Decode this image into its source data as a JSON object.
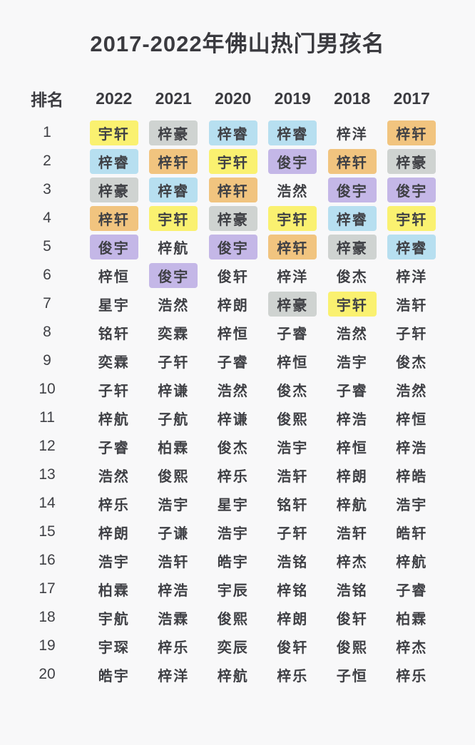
{
  "chart_data": {
    "type": "table",
    "title": "2017-2022年佛山热门男孩名",
    "rank_header": "排名",
    "year_columns": [
      "2022",
      "2021",
      "2020",
      "2019",
      "2018",
      "2017"
    ],
    "highlight_palette": {
      "yellow": "#faf170",
      "gray": "#cfd3d1",
      "blue": "#b7dff0",
      "orange": "#f1c47f",
      "purple": "#c4b7e7"
    },
    "rows": [
      {
        "rank": "1",
        "names": [
          "宇轩",
          "梓豪",
          "梓睿",
          "梓睿",
          "梓洋",
          "梓轩"
        ],
        "highlights": [
          "yellow",
          "gray",
          "blue",
          "blue",
          "",
          "orange"
        ]
      },
      {
        "rank": "2",
        "names": [
          "梓睿",
          "梓轩",
          "宇轩",
          "俊宇",
          "梓轩",
          "梓豪"
        ],
        "highlights": [
          "blue",
          "orange",
          "yellow",
          "purple",
          "orange",
          "gray"
        ]
      },
      {
        "rank": "3",
        "names": [
          "梓豪",
          "梓睿",
          "梓轩",
          "浩然",
          "俊宇",
          "俊宇"
        ],
        "highlights": [
          "gray",
          "blue",
          "orange",
          "",
          "purple",
          "purple"
        ]
      },
      {
        "rank": "4",
        "names": [
          "梓轩",
          "宇轩",
          "梓豪",
          "宇轩",
          "梓睿",
          "宇轩"
        ],
        "highlights": [
          "orange",
          "yellow",
          "gray",
          "yellow",
          "blue",
          "yellow"
        ]
      },
      {
        "rank": "5",
        "names": [
          "俊宇",
          "梓航",
          "俊宇",
          "梓轩",
          "梓豪",
          "梓睿"
        ],
        "highlights": [
          "purple",
          "",
          "purple",
          "orange",
          "gray",
          "blue"
        ]
      },
      {
        "rank": "6",
        "names": [
          "梓恒",
          "俊宇",
          "俊轩",
          "梓洋",
          "俊杰",
          "梓洋"
        ],
        "highlights": [
          "",
          "purple",
          "",
          "",
          "",
          ""
        ]
      },
      {
        "rank": "7",
        "names": [
          "星宇",
          "浩然",
          "梓朗",
          "梓豪",
          "宇轩",
          "浩轩"
        ],
        "highlights": [
          "",
          "",
          "",
          "gray",
          "yellow",
          ""
        ]
      },
      {
        "rank": "8",
        "names": [
          "铭轩",
          "奕霖",
          "梓恒",
          "子睿",
          "浩然",
          "子轩"
        ],
        "highlights": [
          "",
          "",
          "",
          "",
          "",
          ""
        ]
      },
      {
        "rank": "9",
        "names": [
          "奕霖",
          "子轩",
          "子睿",
          "梓恒",
          "浩宇",
          "俊杰"
        ],
        "highlights": [
          "",
          "",
          "",
          "",
          "",
          ""
        ]
      },
      {
        "rank": "10",
        "names": [
          "子轩",
          "梓谦",
          "浩然",
          "俊杰",
          "子睿",
          "浩然"
        ],
        "highlights": [
          "",
          "",
          "",
          "",
          "",
          ""
        ]
      },
      {
        "rank": "11",
        "names": [
          "梓航",
          "子航",
          "梓谦",
          "俊熙",
          "梓浩",
          "梓恒"
        ],
        "highlights": [
          "",
          "",
          "",
          "",
          "",
          ""
        ]
      },
      {
        "rank": "12",
        "names": [
          "子睿",
          "柏霖",
          "俊杰",
          "浩宇",
          "梓恒",
          "梓浩"
        ],
        "highlights": [
          "",
          "",
          "",
          "",
          "",
          ""
        ]
      },
      {
        "rank": "13",
        "names": [
          "浩然",
          "俊熙",
          "梓乐",
          "浩轩",
          "梓朗",
          "梓皓"
        ],
        "highlights": [
          "",
          "",
          "",
          "",
          "",
          ""
        ]
      },
      {
        "rank": "14",
        "names": [
          "梓乐",
          "浩宇",
          "星宇",
          "铭轩",
          "梓航",
          "浩宇"
        ],
        "highlights": [
          "",
          "",
          "",
          "",
          "",
          ""
        ]
      },
      {
        "rank": "15",
        "names": [
          "梓朗",
          "子谦",
          "浩宇",
          "子轩",
          "浩轩",
          "皓轩"
        ],
        "highlights": [
          "",
          "",
          "",
          "",
          "",
          ""
        ]
      },
      {
        "rank": "16",
        "names": [
          "浩宇",
          "浩轩",
          "皓宇",
          "浩铭",
          "梓杰",
          "梓航"
        ],
        "highlights": [
          "",
          "",
          "",
          "",
          "",
          ""
        ]
      },
      {
        "rank": "17",
        "names": [
          "柏霖",
          "梓浩",
          "宇辰",
          "梓铭",
          "浩铭",
          "子睿"
        ],
        "highlights": [
          "",
          "",
          "",
          "",
          "",
          ""
        ]
      },
      {
        "rank": "18",
        "names": [
          "宇航",
          "浩霖",
          "俊熙",
          "梓朗",
          "俊轩",
          "柏霖"
        ],
        "highlights": [
          "",
          "",
          "",
          "",
          "",
          ""
        ]
      },
      {
        "rank": "19",
        "names": [
          "宇琛",
          "梓乐",
          "奕辰",
          "俊轩",
          "俊熙",
          "梓杰"
        ],
        "highlights": [
          "",
          "",
          "",
          "",
          "",
          ""
        ]
      },
      {
        "rank": "20",
        "names": [
          "皓宇",
          "梓洋",
          "梓航",
          "梓乐",
          "子恒",
          "梓乐"
        ],
        "highlights": [
          "",
          "",
          "",
          "",
          "",
          ""
        ]
      }
    ]
  }
}
